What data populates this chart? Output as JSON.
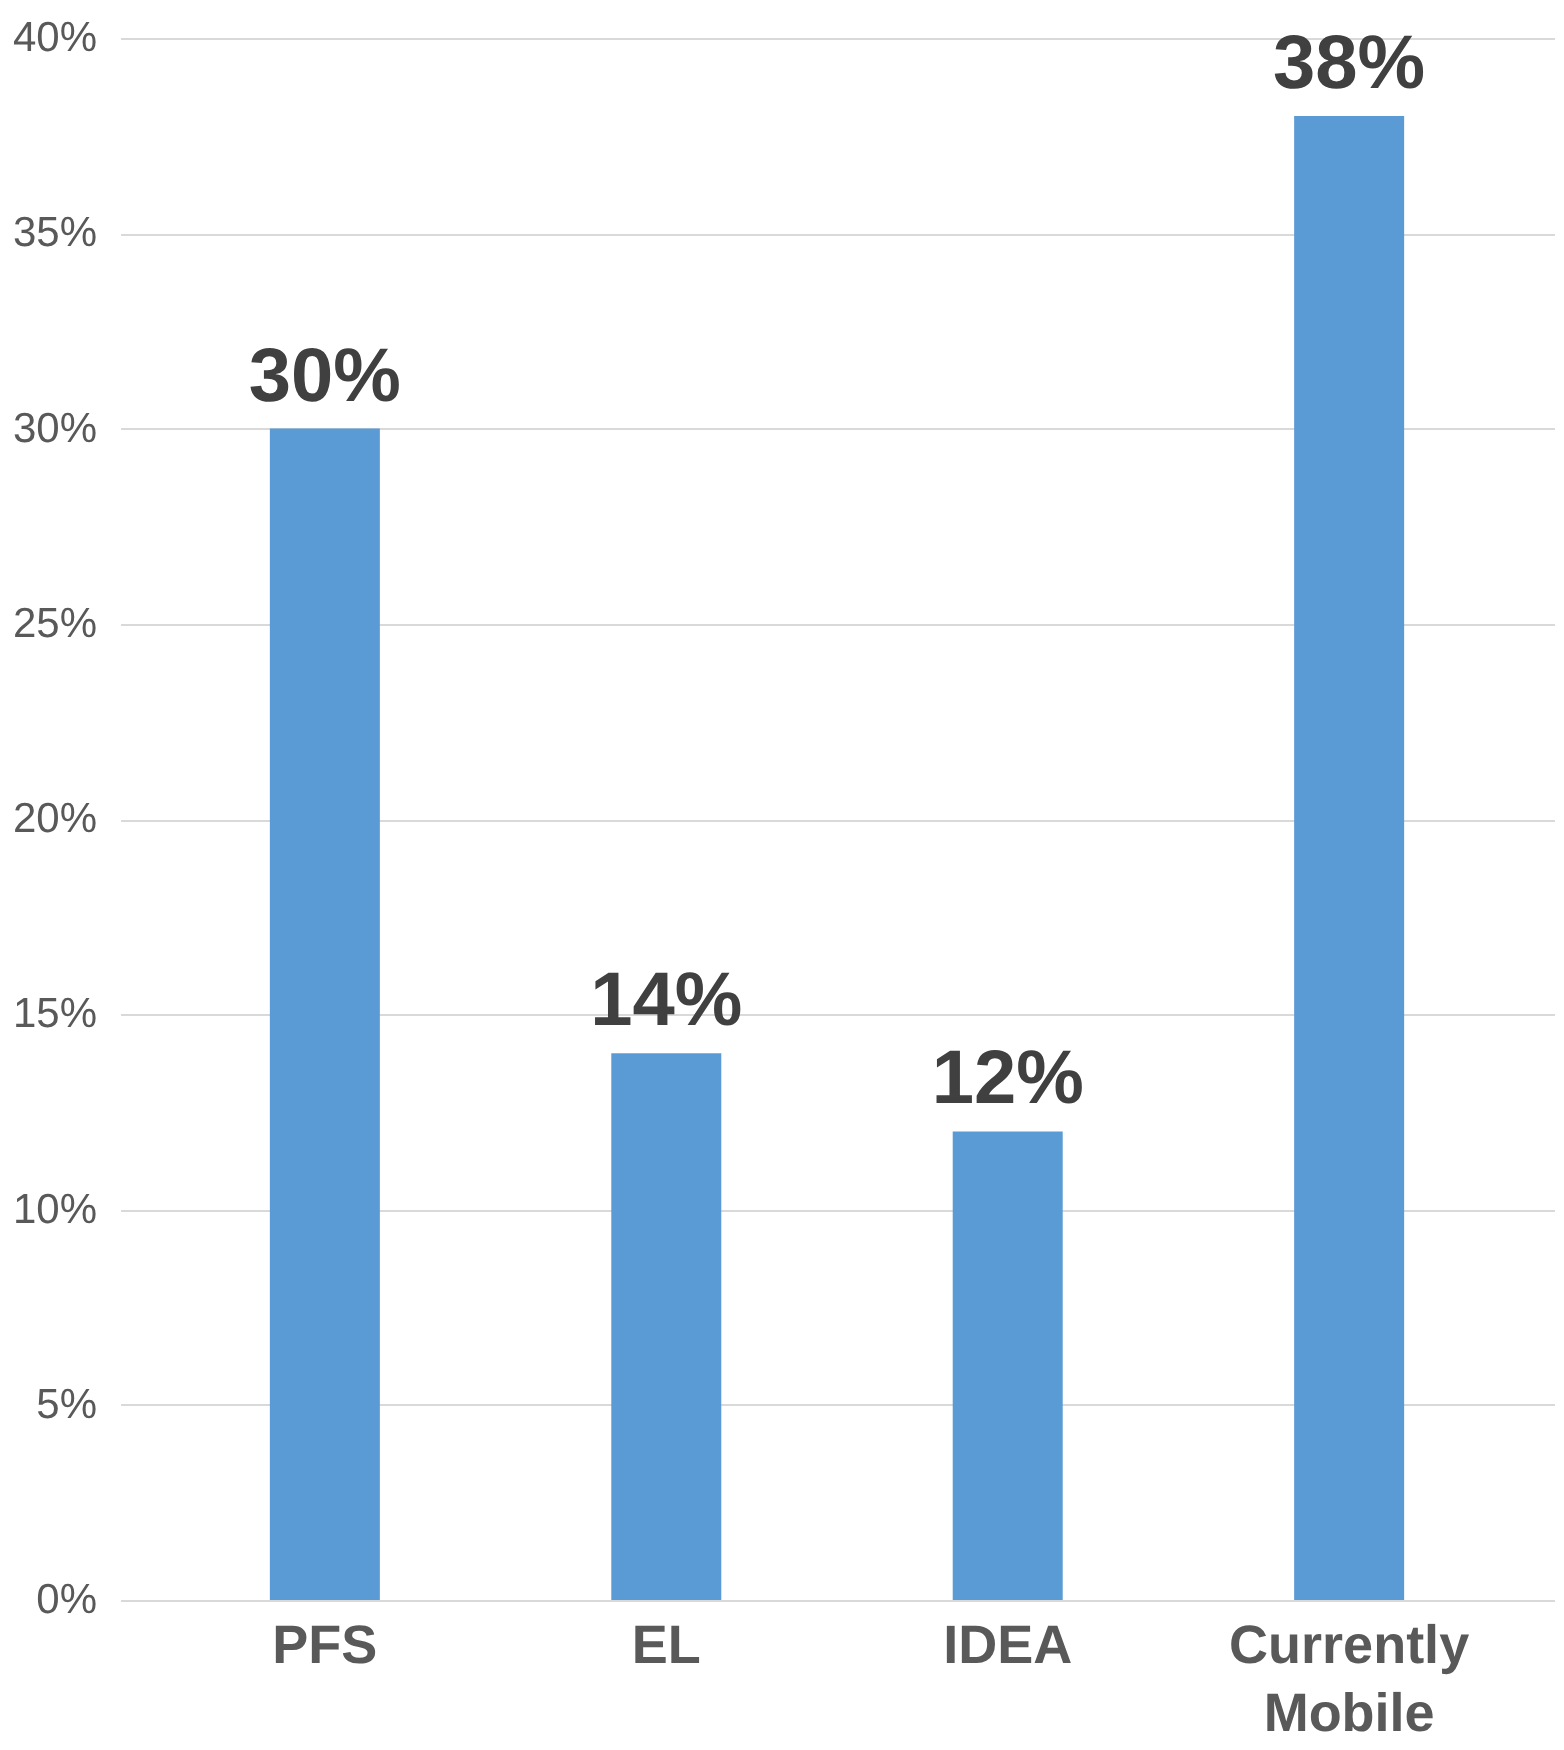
{
  "chart_data": {
    "type": "bar",
    "categories": [
      "PFS",
      "EL",
      "IDEA",
      "Currently Mobile"
    ],
    "values": [
      30,
      14,
      12,
      38
    ],
    "value_labels": [
      "30%",
      "14%",
      "12%",
      "38%"
    ],
    "color": "#5b9bd5",
    "ylim": [
      0,
      40
    ],
    "yticks": [
      {
        "value": 0,
        "label": "0%"
      },
      {
        "value": 5,
        "label": "5%"
      },
      {
        "value": 10,
        "label": "10%"
      },
      {
        "value": 15,
        "label": "15%"
      },
      {
        "value": 20,
        "label": "20%"
      },
      {
        "value": 25,
        "label": "25%"
      },
      {
        "value": 30,
        "label": "30%"
      },
      {
        "value": 35,
        "label": "35%"
      },
      {
        "value": 40,
        "label": "40%"
      }
    ],
    "grid": "y"
  }
}
